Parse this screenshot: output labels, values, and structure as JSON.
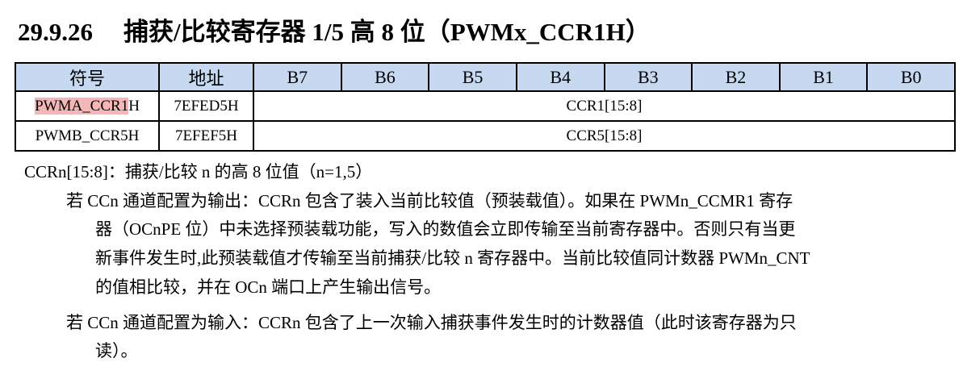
{
  "title": {
    "number": "29.9.26",
    "text": "捕获/比较寄存器 1/5 高 8 位（PWMx_CCR1H）"
  },
  "table": {
    "headers": [
      "符号",
      "地址",
      "B7",
      "B6",
      "B5",
      "B4",
      "B3",
      "B2",
      "B1",
      "B0"
    ],
    "rows": [
      {
        "symbol_highlighted": "PWMA_CCR1",
        "symbol_rest": "H",
        "address": "7EFED5H",
        "value": "CCR1[15:8]"
      },
      {
        "symbol_highlighted": "",
        "symbol_rest": "PWMB_CCR5H",
        "address": "7EFEF5H",
        "value": "CCR5[15:8]"
      }
    ],
    "highlight_color": "#f4b6b6",
    "header_color": "#c6d9f1"
  },
  "description": {
    "field": "CCRn[15:8]：捕获/比较 n 的高 8 位值（n=1,5）",
    "lines": [
      "若 CCn 通道配置为输出：CCRn 包含了装入当前比较值（预装载值）。如果在 PWMn_CCMR1 寄存",
      "器（OCnPE 位）中未选择预装载功能，写入的数值会立即传输至当前寄存器中。否则只有当更",
      "新事件发生时,此预装载值才传输至当前捕获/比较 n 寄存器中。当前比较值同计数器 PWMn_CNT",
      "的值相比较，并在 OCn 端口上产生输出信号。",
      "若 CCn 通道配置为输入：CCRn 包含了上一次输入捕获事件发生时的计数器值（此时该寄存器为只",
      "读）。"
    ]
  }
}
